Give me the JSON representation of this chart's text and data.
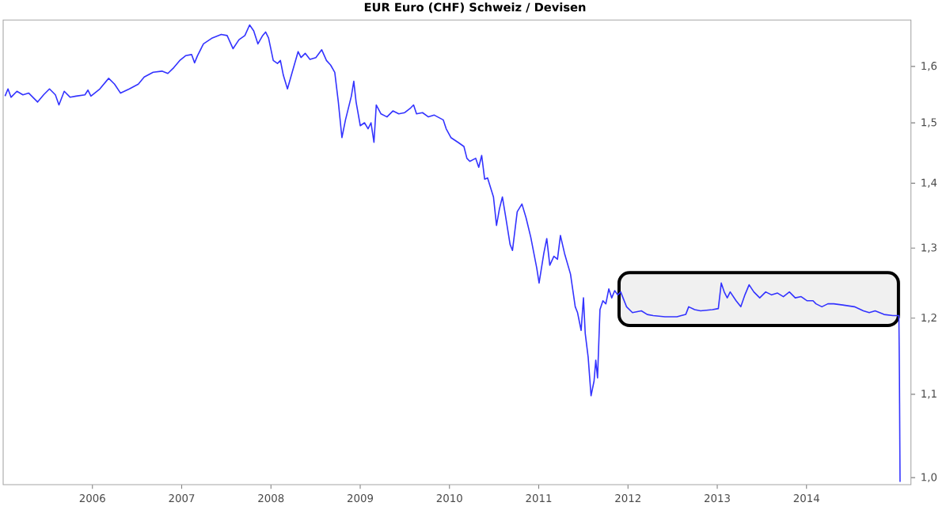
{
  "chart_data": {
    "type": "line",
    "title": "EUR Euro (CHF) Schweiz / Devisen",
    "color": "#3333ff",
    "log": "y",
    "xlim": [
      2005.0,
      2015.17
    ],
    "xticks": [
      2006,
      2007,
      2008,
      2009,
      2010,
      2011,
      2012,
      2013,
      2014
    ],
    "ylim": [
      0.992,
      1.687
    ],
    "yticks": [
      {
        "value": 1.0,
        "label": "1,0"
      },
      {
        "value": 1.1,
        "label": "1,1"
      },
      {
        "value": 1.2,
        "label": "1,2"
      },
      {
        "value": 1.3,
        "label": "1,3"
      },
      {
        "value": 1.4,
        "label": "1,4"
      },
      {
        "value": 1.5,
        "label": "1,5"
      },
      {
        "value": 1.6,
        "label": "1,6"
      }
    ],
    "bands": [
      {
        "axis": "x",
        "from": 2011.9,
        "to": 2015.03,
        "color": "#000000"
      }
    ],
    "x": [
      2005.021,
      2005.054,
      2005.088,
      2005.154,
      2005.221,
      2005.287,
      2005.353,
      2005.386,
      2005.453,
      2005.519,
      2005.585,
      2005.625,
      2005.684,
      2005.751,
      2005.817,
      2005.916,
      2005.95,
      2005.983,
      2006.083,
      2006.182,
      2006.248,
      2006.315,
      2006.414,
      2006.514,
      2006.58,
      2006.68,
      2006.779,
      2006.845,
      2006.912,
      2006.978,
      2007.044,
      2007.111,
      2007.144,
      2007.177,
      2007.244,
      2007.343,
      2007.443,
      2007.509,
      2007.575,
      2007.642,
      2007.708,
      2007.761,
      2007.807,
      2007.854,
      2007.907,
      2007.94,
      2007.973,
      2008.026,
      2008.073,
      2008.106,
      2008.139,
      2008.185,
      2008.238,
      2008.304,
      2008.337,
      2008.384,
      2008.437,
      2008.503,
      2008.569,
      2008.622,
      2008.669,
      2008.715,
      2008.755,
      2008.795,
      2008.835,
      2008.901,
      2008.928,
      2008.954,
      2009.001,
      2009.048,
      2009.088,
      2009.121,
      2009.154,
      2009.18,
      2009.233,
      2009.3,
      2009.366,
      2009.432,
      2009.499,
      2009.565,
      2009.598,
      2009.631,
      2009.698,
      2009.764,
      2009.83,
      2009.93,
      2009.963,
      2010.016,
      2010.096,
      2010.162,
      2010.195,
      2010.228,
      2010.294,
      2010.328,
      2010.361,
      2010.394,
      2010.427,
      2010.493,
      2010.527,
      2010.56,
      2010.593,
      2010.626,
      2010.679,
      2010.706,
      2010.759,
      2010.812,
      2010.858,
      2010.911,
      2010.978,
      2011.004,
      2011.057,
      2011.09,
      2011.124,
      2011.17,
      2011.21,
      2011.243,
      2011.289,
      2011.356,
      2011.409,
      2011.435,
      2011.475,
      2011.501,
      2011.521,
      2011.554,
      2011.586,
      2011.62,
      2011.639,
      2011.659,
      2011.686,
      2011.719,
      2011.752,
      2011.785,
      2011.818,
      2011.851,
      2011.885,
      2011.918,
      2011.984,
      2012.05,
      2012.15,
      2012.216,
      2012.282,
      2012.415,
      2012.548,
      2012.647,
      2012.68,
      2012.747,
      2012.813,
      2012.946,
      2013.012,
      2013.045,
      2013.078,
      2013.112,
      2013.145,
      2013.211,
      2013.264,
      2013.31,
      2013.357,
      2013.41,
      2013.476,
      2013.543,
      2013.609,
      2013.675,
      2013.741,
      2013.808,
      2013.874,
      2013.94,
      2014.007,
      2014.073,
      2014.106,
      2014.172,
      2014.239,
      2014.305,
      2014.405,
      2014.537,
      2014.637,
      2014.703,
      2014.769,
      2014.869,
      2014.968,
      2015.035,
      2015.041,
      2015.048
    ],
    "values": [
      1.5466,
      1.5593,
      1.5445,
      1.5551,
      1.5487,
      1.5519,
      1.5414,
      1.5362,
      1.5487,
      1.5593,
      1.5487,
      1.531,
      1.5551,
      1.5445,
      1.5466,
      1.5487,
      1.5572,
      1.5466,
      1.5593,
      1.5784,
      1.5678,
      1.5519,
      1.5593,
      1.5678,
      1.5806,
      1.5892,
      1.5913,
      1.587,
      1.5978,
      1.6109,
      1.6196,
      1.6218,
      1.6065,
      1.6196,
      1.6417,
      1.6529,
      1.6596,
      1.6574,
      1.6328,
      1.6495,
      1.6574,
      1.6777,
      1.6664,
      1.6417,
      1.6574,
      1.6641,
      1.6529,
      1.6109,
      1.6054,
      1.6109,
      1.5838,
      1.5593,
      1.5892,
      1.6273,
      1.6163,
      1.624,
      1.613,
      1.6163,
      1.6306,
      1.6109,
      1.6022,
      1.5892,
      1.5362,
      1.475,
      1.5052,
      1.5466,
      1.5731,
      1.5362,
      1.4951,
      1.5002,
      1.49,
      1.5002,
      1.467,
      1.531,
      1.5155,
      1.5103,
      1.5206,
      1.5155,
      1.5176,
      1.5258,
      1.531,
      1.5155,
      1.5176,
      1.5103,
      1.5134,
      1.5052,
      1.49,
      1.475,
      1.467,
      1.46,
      1.4404,
      1.4355,
      1.4404,
      1.4258,
      1.4453,
      1.4066,
      1.4085,
      1.3782,
      1.3341,
      1.3597,
      1.3782,
      1.3505,
      1.3054,
      1.2966,
      1.3551,
      1.3671,
      1.3459,
      1.3161,
      1.2705,
      1.2491,
      1.2922,
      1.3143,
      1.2748,
      1.2879,
      1.2835,
      1.3188,
      1.2922,
      1.2619,
      1.2157,
      1.2075,
      1.1832,
      1.2281,
      1.1792,
      1.1476,
      1.0981,
      1.1169,
      1.1437,
      1.1207,
      1.2116,
      1.224,
      1.2198,
      1.2407,
      1.2281,
      1.2382,
      1.2323,
      1.2365,
      1.2157,
      1.2075,
      1.21,
      1.205,
      1.2034,
      1.2018,
      1.2018,
      1.205,
      1.2157,
      1.2116,
      1.21,
      1.2116,
      1.2132,
      1.2491,
      1.2365,
      1.2281,
      1.2365,
      1.224,
      1.2157,
      1.2323,
      1.2466,
      1.2365,
      1.2281,
      1.2365,
      1.2323,
      1.2349,
      1.2298,
      1.2365,
      1.2281,
      1.2298,
      1.224,
      1.224,
      1.2198,
      1.2157,
      1.2198,
      1.2198,
      1.2182,
      1.2157,
      1.21,
      1.2075,
      1.21,
      1.205,
      1.2034,
      1.2034,
      1.1245,
      0.9953
    ]
  }
}
